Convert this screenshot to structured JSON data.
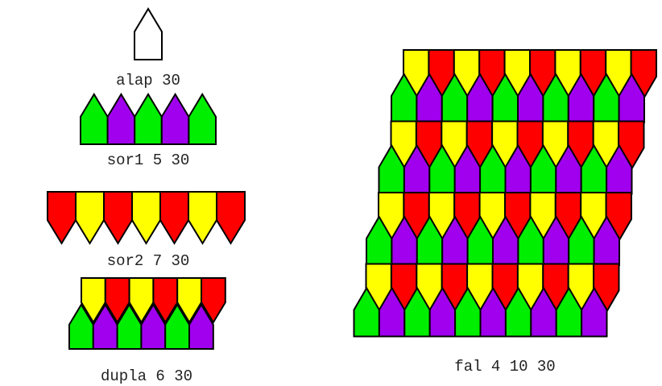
{
  "colors": {
    "green": "#00ee00",
    "purple": "#a000ee",
    "yellow": "#ffff00",
    "red": "#ff0000",
    "stroke": "#000000"
  },
  "figures": [
    {
      "id": "alap",
      "label": "alap 30"
    },
    {
      "id": "sor1",
      "label": "sor1 5 30",
      "count": 5,
      "colors": [
        "green",
        "purple"
      ]
    },
    {
      "id": "sor2",
      "label": "sor2 7 30",
      "count": 7,
      "colors": [
        "red",
        "yellow"
      ]
    },
    {
      "id": "dupla",
      "label": "dupla 6 30",
      "count": 6
    },
    {
      "id": "fal",
      "label": "fal 4 10 30",
      "rows": 4,
      "count": 10
    }
  ]
}
